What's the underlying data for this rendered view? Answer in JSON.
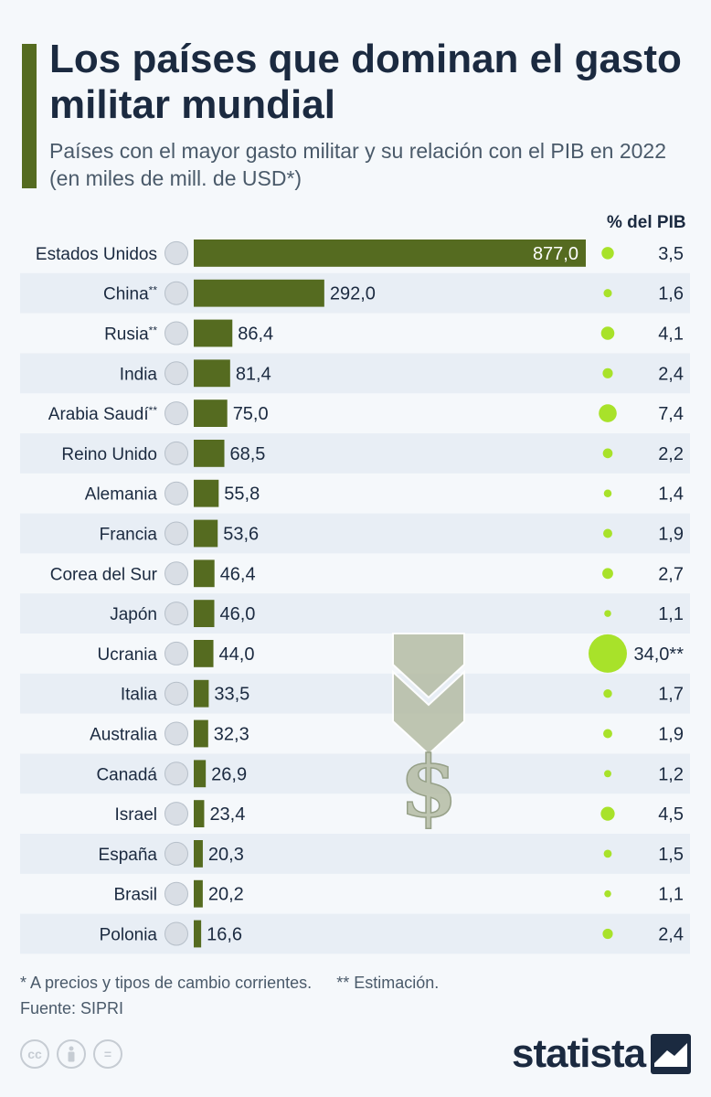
{
  "header": {
    "title": "Los países que dominan el gasto militar mundial",
    "subtitle": "Países con el mayor gasto militar y su relación con el PIB en 2022 (en miles de mill. de USD*)",
    "pib_column_label": "% del PIB"
  },
  "chart_data": {
    "type": "bar",
    "orientation": "horizontal",
    "title": "Los países que dominan el gasto militar mundial",
    "xlabel": "",
    "ylabel": "",
    "xlim": [
      0,
      877
    ],
    "categories": [
      "Estados Unidos",
      "China**",
      "Rusia**",
      "India",
      "Arabia Saudí**",
      "Reino Unido",
      "Alemania",
      "Francia",
      "Corea del Sur",
      "Japón",
      "Ucrania",
      "Italia",
      "Australia",
      "Canadá",
      "Israel",
      "España",
      "Brasil",
      "Polonia"
    ],
    "series": [
      {
        "name": "Gasto militar (miles de mill. de USD)",
        "values": [
          877.0,
          292.0,
          86.4,
          81.4,
          75.0,
          68.5,
          55.8,
          53.6,
          46.4,
          46.0,
          44.0,
          33.5,
          32.3,
          26.9,
          23.4,
          20.3,
          20.2,
          16.6
        ],
        "labels": [
          "877,0",
          "292,0",
          "86,4",
          "81,4",
          "75,0",
          "68,5",
          "55,8",
          "53,6",
          "46,4",
          "46,0",
          "44,0",
          "33,5",
          "32,3",
          "26,9",
          "23,4",
          "20,3",
          "20,2",
          "16,6"
        ]
      },
      {
        "name": "% del PIB",
        "values": [
          3.5,
          1.6,
          4.1,
          2.4,
          7.4,
          2.2,
          1.4,
          1.9,
          2.7,
          1.1,
          34.0,
          1.7,
          1.9,
          1.2,
          4.5,
          1.5,
          1.1,
          2.4
        ],
        "labels": [
          "3,5",
          "1,6",
          "4,1",
          "2,4",
          "7,4",
          "2,2",
          "1,4",
          "1,9",
          "2,7",
          "1,1",
          "34,0**",
          "1,7",
          "1,9",
          "1,2",
          "4,5",
          "1,5",
          "1,1",
          "2,4"
        ]
      }
    ]
  },
  "colors": {
    "bar": "#556b20",
    "bubble": "#a8e22a",
    "row_alt": "#e8eef5",
    "accent": "#556b20"
  },
  "footer": {
    "note1": "* A precios y tipos de cambio corrientes.",
    "note2": "** Estimación.",
    "source": "Fuente: SIPRI",
    "logo": "statista",
    "license_icons": [
      "cc-icon",
      "attribution-icon",
      "no-derivatives-icon"
    ]
  }
}
